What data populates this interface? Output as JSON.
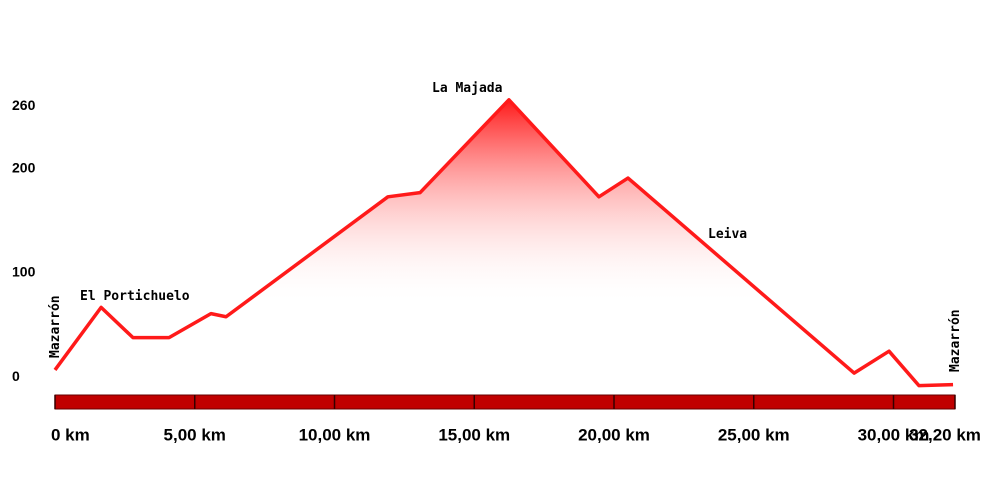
{
  "chart_data": {
    "type": "area",
    "x": [
      0,
      1.65,
      2.79,
      4.08,
      5.58,
      6.12,
      11.91,
      13.06,
      16.24,
      19.46,
      20.5,
      28.59,
      29.84,
      30.91,
      32.13
    ],
    "values": [
      7,
      67,
      38,
      38,
      61,
      58,
      173,
      177,
      266,
      173,
      191,
      4,
      25,
      -8,
      -7
    ],
    "color": "#ff1a1a",
    "xlim": [
      0,
      32.2
    ],
    "xticks": [
      {
        "value": 0,
        "label": "0 km"
      },
      {
        "value": 5,
        "label": "5,00 km"
      },
      {
        "value": 10,
        "label": "10,00 km"
      },
      {
        "value": 15,
        "label": "15,00 km"
      },
      {
        "value": 20,
        "label": "20,00 km"
      },
      {
        "value": 25,
        "label": "25,00 km"
      },
      {
        "value": 30,
        "label": "30,00 km"
      },
      {
        "value": 32.2,
        "label": "32,20 km"
      }
    ],
    "ylim": [
      -17,
      285
    ],
    "yticks": [
      0,
      100,
      200,
      260
    ],
    "annotations": [
      "Mazarrón",
      "El Portichuelo",
      "La Majada",
      "Leiva",
      "Mazarrón"
    ]
  }
}
